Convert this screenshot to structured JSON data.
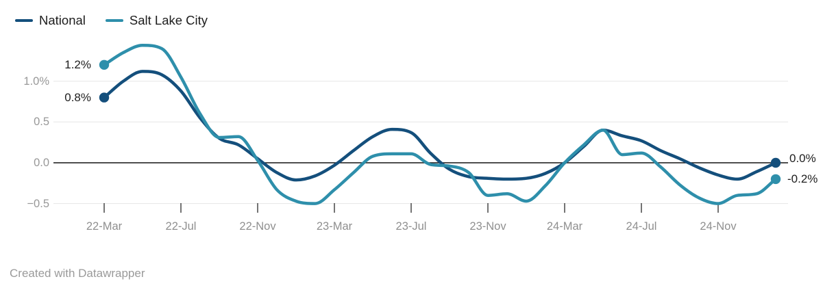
{
  "legend": {
    "items": [
      {
        "label": "National",
        "color": "#144f7c"
      },
      {
        "label": "Salt Lake City",
        "color": "#2e8fab"
      }
    ]
  },
  "chart_data": {
    "type": "line",
    "unit": "%",
    "x": [
      "Mar 2022",
      "Apr 2022",
      "May 2022",
      "Jun 2022",
      "Jul 2022",
      "Aug 2022",
      "Sep 2022",
      "Oct 2022",
      "Nov 2022",
      "Dec 2022",
      "Jan 2023",
      "Feb 2023",
      "Mar 2023",
      "Apr 2023",
      "May 2023",
      "Jun 2023",
      "Jul 2023",
      "Aug 2023",
      "Sep 2023",
      "Oct 2023",
      "Nov 2023",
      "Dec 2023",
      "Jan 2024",
      "Feb 2024",
      "Mar 2024",
      "Apr 2024",
      "May 2024",
      "Jun 2024",
      "Jul 2024",
      "Aug 2024",
      "Sep 2024",
      "Oct 2024",
      "Nov 2024",
      "Dec 2024",
      "Jan 2025",
      "Feb 2025"
    ],
    "series": [
      {
        "name": "National",
        "color": "#144f7c",
        "start_label": "0.8%",
        "end_label": "0.0%",
        "values": [
          0.8,
          1.0,
          1.12,
          1.08,
          0.88,
          0.55,
          0.3,
          0.22,
          0.05,
          -0.12,
          -0.21,
          -0.16,
          -0.03,
          0.15,
          0.32,
          0.41,
          0.37,
          0.12,
          -0.08,
          -0.17,
          -0.19,
          -0.2,
          -0.19,
          -0.13,
          0.0,
          0.2,
          0.4,
          0.33,
          0.27,
          0.15,
          0.05,
          -0.06,
          -0.15,
          -0.2,
          -0.11,
          0.0
        ]
      },
      {
        "name": "Salt Lake City",
        "color": "#2e8fab",
        "start_label": "1.2%",
        "end_label": "-0.2%",
        "values": [
          1.2,
          1.35,
          1.44,
          1.4,
          1.05,
          0.6,
          0.31,
          0.32,
          0.03,
          -0.33,
          -0.47,
          -0.5,
          -0.33,
          -0.12,
          0.08,
          0.11,
          0.11,
          -0.02,
          -0.04,
          -0.12,
          -0.4,
          -0.38,
          -0.47,
          -0.28,
          0.0,
          0.22,
          0.4,
          0.1,
          0.12,
          -0.05,
          -0.27,
          -0.43,
          -0.5,
          -0.4,
          -0.38,
          -0.2
        ]
      }
    ],
    "x_tick_labels": [
      "22-Mar",
      "22-Jul",
      "22-Nov",
      "23-Mar",
      "23-Jul",
      "23-Nov",
      "24-Mar",
      "24-Jul",
      "24-Nov"
    ],
    "y_tick_labels": [
      "1.0%",
      "0.5",
      "0.0",
      "−0.5"
    ],
    "y_tick_values": [
      1.0,
      0.5,
      0.0,
      -0.5
    ],
    "ylim": [
      -0.6,
      1.55
    ],
    "grid": true,
    "zero_baseline": true,
    "legend_position": "top-left"
  },
  "footer": {
    "credit": "Created with Datawrapper"
  }
}
